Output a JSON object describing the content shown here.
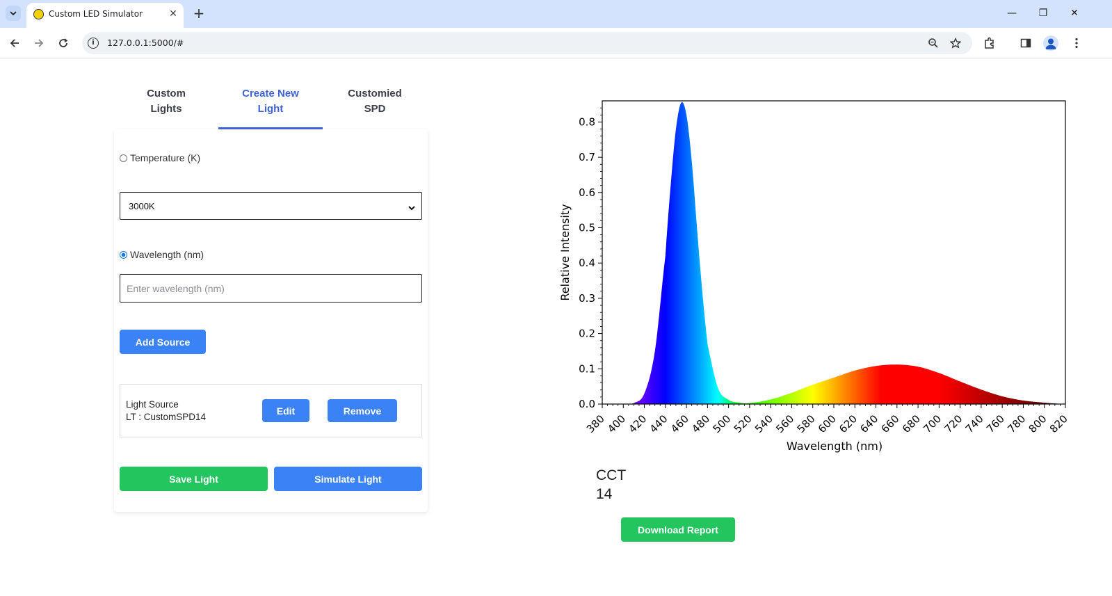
{
  "browser": {
    "tab_title": "Custom LED Simulator",
    "url": "127.0.0.1:5000/#"
  },
  "icons": [
    "tab-search-icon",
    "favicon-icon",
    "close-icon",
    "plus-icon",
    "minimize-icon",
    "restore-icon",
    "window-close-icon",
    "back-icon",
    "forward-icon",
    "reload-icon",
    "info-icon",
    "zoom-icon",
    "star-icon",
    "extensions-icon",
    "side-panel-icon",
    "profile-icon",
    "menu-icon"
  ],
  "nav_tabs": [
    {
      "label_line1": "Custom",
      "label_line2": "Lights"
    },
    {
      "label_line1": "Create New",
      "label_line2": "Light"
    },
    {
      "label_line1": "Customied",
      "label_line2": "SPD"
    }
  ],
  "form": {
    "temperature_label": "Temperature (K)",
    "temperature_value": "3000K",
    "wavelength_label": "Wavelength (nm)",
    "wavelength_placeholder": "Enter wavelength (nm)",
    "add_source_label": "Add Source",
    "source_text": "Light Source\nLT : CustomSPD14",
    "edit_label": "Edit",
    "remove_label": "Remove",
    "save_label": "Save Light",
    "simulate_label": "Simulate Light"
  },
  "cct": {
    "label": "CCT",
    "value": "14"
  },
  "download_label": "Download Report",
  "colors": {
    "accent_blue": "#3b82f6",
    "accent_green": "#22c55e",
    "active_tab": "#3f63d6"
  },
  "chart_data": {
    "type": "area",
    "xlabel": "Wavelength (nm)",
    "ylabel": "Relative Intensity",
    "xlim": [
      380,
      820
    ],
    "ylim": [
      0.0,
      0.86
    ],
    "xticks": [
      380,
      400,
      420,
      440,
      460,
      480,
      500,
      520,
      540,
      560,
      580,
      600,
      620,
      640,
      660,
      680,
      700,
      720,
      740,
      760,
      780,
      800,
      820
    ],
    "yticks": [
      0.0,
      0.1,
      0.2,
      0.3,
      0.4,
      0.5,
      0.6,
      0.7,
      0.8
    ],
    "series": [
      {
        "x": [
          380,
          400,
          410,
          420,
          430,
          440,
          445,
          450,
          455,
          460,
          465,
          470,
          475,
          480,
          490,
          500,
          510,
          520,
          540,
          560,
          580,
          600,
          620,
          640,
          660,
          680,
          700,
          720,
          740,
          760,
          780,
          800,
          820
        ],
        "y": [
          0.0,
          0.0,
          0.003,
          0.03,
          0.15,
          0.42,
          0.62,
          0.78,
          0.855,
          0.82,
          0.69,
          0.5,
          0.32,
          0.17,
          0.045,
          0.012,
          0.004,
          0.003,
          0.013,
          0.032,
          0.055,
          0.075,
          0.095,
          0.108,
          0.112,
          0.106,
          0.088,
          0.064,
          0.041,
          0.022,
          0.01,
          0.004,
          0.0
        ]
      }
    ],
    "fill": "visible spectrum colors"
  }
}
